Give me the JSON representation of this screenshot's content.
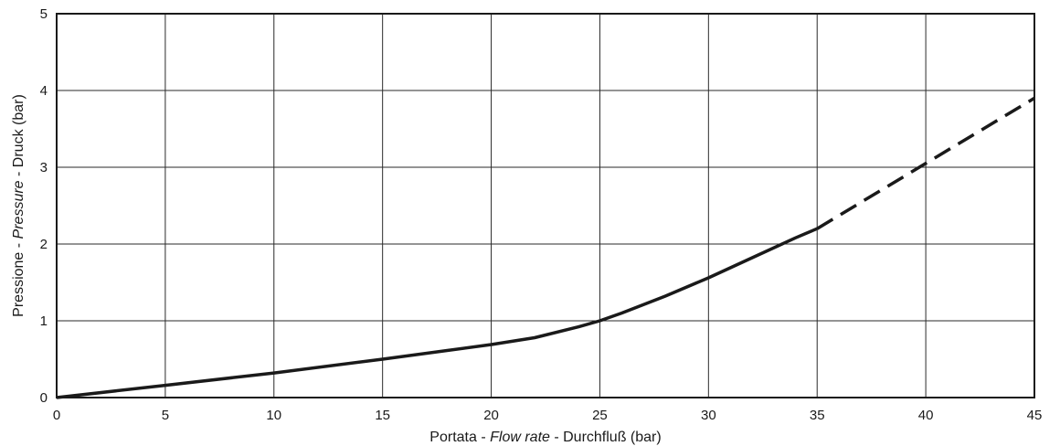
{
  "chart_data": {
    "type": "line",
    "xlabel": {
      "part1": "Portata - ",
      "part2": "Flow rate",
      "part3": " - Durchfluß (bar)"
    },
    "ylabel": {
      "part1": "Pressione - ",
      "part2": "Pressure",
      "part3": " - Druck (bar)"
    },
    "xlim": [
      0,
      45
    ],
    "ylim": [
      0,
      5
    ],
    "x_ticks": [
      0,
      5,
      10,
      15,
      20,
      25,
      30,
      35,
      40,
      45
    ],
    "y_ticks": [
      0,
      1,
      2,
      3,
      4,
      5
    ],
    "grid": true,
    "series": [
      {
        "style": "solid",
        "x": [
          0,
          5,
          10,
          15,
          20,
          22,
          24,
          25,
          26,
          28,
          30,
          32,
          34,
          35
        ],
        "y": [
          0,
          0.16,
          0.32,
          0.5,
          0.69,
          0.78,
          0.92,
          1.0,
          1.1,
          1.32,
          1.56,
          1.82,
          2.08,
          2.2
        ]
      },
      {
        "style": "dashed",
        "x": [
          35,
          40,
          45
        ],
        "y": [
          2.2,
          3.05,
          3.9
        ]
      }
    ],
    "colors": {
      "line": "#1a1a1a",
      "grid": "#2a2a2a",
      "background": "#ffffff"
    }
  }
}
